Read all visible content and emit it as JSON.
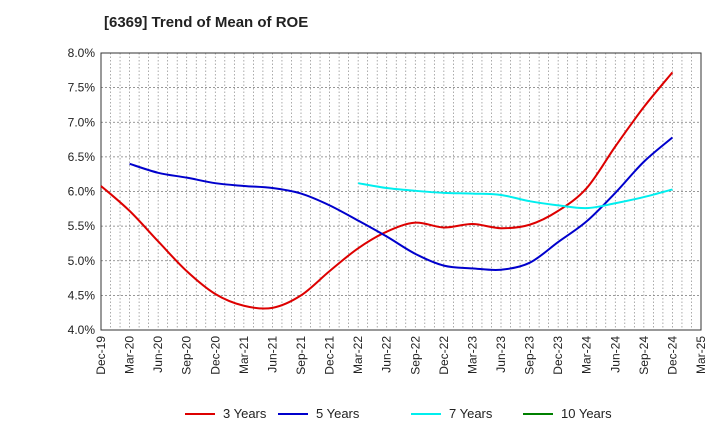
{
  "chart_data": {
    "type": "line",
    "title": "[6369]  Trend of Mean of ROE",
    "xlabel": "",
    "ylabel": "",
    "x": [
      "Dec-19",
      "Mar-20",
      "Jun-20",
      "Sep-20",
      "Dec-20",
      "Mar-21",
      "Jun-21",
      "Sep-21",
      "Dec-21",
      "Mar-22",
      "Jun-22",
      "Sep-22",
      "Dec-22",
      "Mar-23",
      "Jun-23",
      "Sep-23",
      "Dec-23",
      "Mar-24",
      "Jun-24",
      "Sep-24",
      "Dec-24",
      "Mar-25"
    ],
    "ylim": [
      4.0,
      8.0
    ],
    "yticks": [
      "4.0%",
      "4.5%",
      "5.0%",
      "5.5%",
      "6.0%",
      "6.5%",
      "7.0%",
      "7.5%",
      "8.0%"
    ],
    "grid": true,
    "legend_position": "bottom",
    "series": [
      {
        "name": "3 Years",
        "color": "#dd0000",
        "values": [
          6.08,
          5.72,
          5.28,
          4.85,
          4.52,
          4.35,
          4.32,
          4.5,
          4.85,
          5.18,
          5.42,
          5.55,
          5.48,
          5.53,
          5.47,
          5.52,
          5.72,
          6.05,
          6.65,
          7.22,
          7.72,
          null
        ]
      },
      {
        "name": "5 Years",
        "color": "#0000cc",
        "values": [
          null,
          6.4,
          6.27,
          6.2,
          6.12,
          6.08,
          6.05,
          5.97,
          5.8,
          5.58,
          5.35,
          5.1,
          4.93,
          4.89,
          4.87,
          4.97,
          5.27,
          5.57,
          5.98,
          6.43,
          6.78,
          null
        ]
      },
      {
        "name": "7 Years",
        "color": "#00eeee",
        "values": [
          null,
          null,
          null,
          null,
          null,
          null,
          null,
          null,
          null,
          6.12,
          6.05,
          6.01,
          5.98,
          5.97,
          5.95,
          5.86,
          5.8,
          5.76,
          5.83,
          5.92,
          6.03,
          null
        ]
      },
      {
        "name": "10 Years",
        "color": "#008000",
        "values": [
          null,
          null,
          null,
          null,
          null,
          null,
          null,
          null,
          null,
          null,
          null,
          null,
          null,
          null,
          null,
          null,
          null,
          null,
          null,
          null,
          null,
          null
        ]
      }
    ]
  }
}
